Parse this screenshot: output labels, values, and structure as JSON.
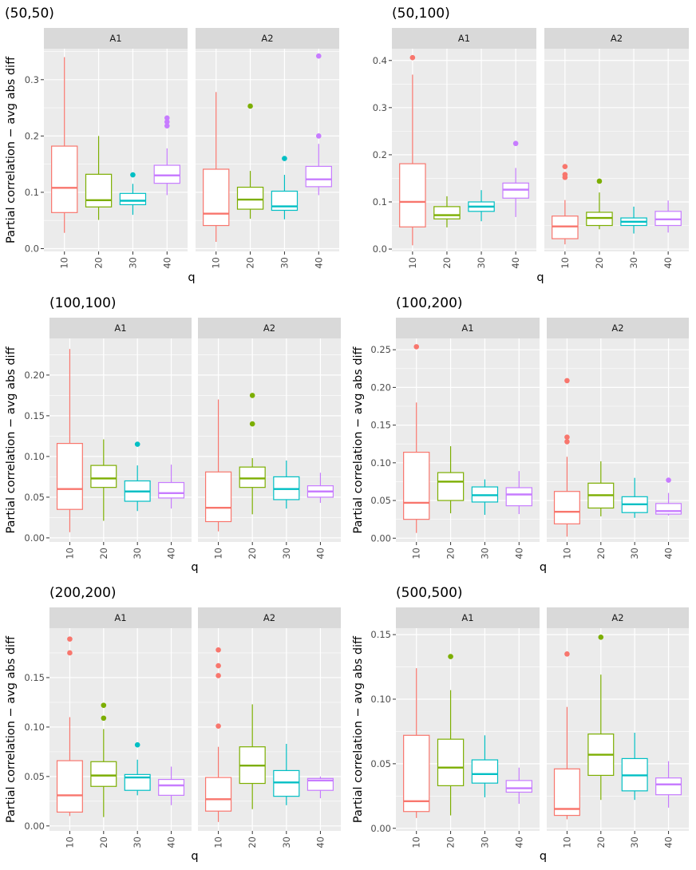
{
  "chart_data": [
    {
      "type": "boxplot",
      "title": "(50,50)",
      "xlabel": "q",
      "ylabel": "Partial correlation − avg abs diff",
      "categories": [
        "10",
        "20",
        "30",
        "40"
      ],
      "colors": [
        "#F8766D",
        "#7CAE00",
        "#00BFC4",
        "#C77CFF"
      ],
      "ylim": [
        -0.005,
        0.355
      ],
      "yticks": [
        0.0,
        0.1,
        0.2,
        0.3
      ],
      "ytick_labels": [
        "0.0",
        "0.1",
        "0.2",
        "0.3"
      ],
      "facets": [
        {
          "label": "A1",
          "boxes": [
            {
              "min": 0.028,
              "q1": 0.064,
              "median": 0.108,
              "q3": 0.182,
              "max": 0.34,
              "outliers": []
            },
            {
              "min": 0.051,
              "q1": 0.074,
              "median": 0.086,
              "q3": 0.132,
              "max": 0.2,
              "outliers": []
            },
            {
              "min": 0.06,
              "q1": 0.078,
              "median": 0.085,
              "q3": 0.098,
              "max": 0.115,
              "outliers": [
                0.131
              ]
            },
            {
              "min": 0.095,
              "q1": 0.116,
              "median": 0.13,
              "q3": 0.148,
              "max": 0.178,
              "outliers": [
                0.218,
                0.225,
                0.232
              ]
            }
          ]
        },
        {
          "label": "A2",
          "boxes": [
            {
              "min": 0.012,
              "q1": 0.041,
              "median": 0.062,
              "q3": 0.141,
              "max": 0.278,
              "outliers": []
            },
            {
              "min": 0.053,
              "q1": 0.07,
              "median": 0.087,
              "q3": 0.109,
              "max": 0.138,
              "outliers": [
                0.253
              ]
            },
            {
              "min": 0.052,
              "q1": 0.068,
              "median": 0.075,
              "q3": 0.102,
              "max": 0.131,
              "outliers": [
                0.16
              ]
            },
            {
              "min": 0.095,
              "q1": 0.11,
              "median": 0.123,
              "q3": 0.146,
              "max": 0.186,
              "outliers": [
                0.2,
                0.342
              ]
            }
          ]
        }
      ]
    },
    {
      "type": "boxplot",
      "title": "(50,100)",
      "xlabel": "q",
      "ylabel": "",
      "categories": [
        "10",
        "20",
        "30",
        "40"
      ],
      "colors": [
        "#F8766D",
        "#7CAE00",
        "#00BFC4",
        "#C77CFF"
      ],
      "ylim": [
        -0.005,
        0.425
      ],
      "yticks": [
        0.0,
        0.1,
        0.2,
        0.3,
        0.4
      ],
      "ytick_labels": [
        "0.0",
        "0.1",
        "0.2",
        "0.3",
        "0.4"
      ],
      "facets": [
        {
          "label": "A1",
          "boxes": [
            {
              "min": 0.008,
              "q1": 0.047,
              "median": 0.1,
              "q3": 0.181,
              "max": 0.37,
              "outliers": [
                0.406
              ]
            },
            {
              "min": 0.046,
              "q1": 0.064,
              "median": 0.072,
              "q3": 0.09,
              "max": 0.112,
              "outliers": []
            },
            {
              "min": 0.059,
              "q1": 0.08,
              "median": 0.09,
              "q3": 0.1,
              "max": 0.125,
              "outliers": []
            },
            {
              "min": 0.068,
              "q1": 0.108,
              "median": 0.126,
              "q3": 0.14,
              "max": 0.172,
              "outliers": [
                0.224
              ]
            }
          ]
        },
        {
          "label": "A2",
          "boxes": [
            {
              "min": 0.01,
              "q1": 0.022,
              "median": 0.048,
              "q3": 0.07,
              "max": 0.104,
              "outliers": [
                0.152,
                0.158,
                0.175
              ]
            },
            {
              "min": 0.042,
              "q1": 0.05,
              "median": 0.066,
              "q3": 0.078,
              "max": 0.12,
              "outliers": [
                0.144
              ]
            },
            {
              "min": 0.033,
              "q1": 0.05,
              "median": 0.058,
              "q3": 0.066,
              "max": 0.09,
              "outliers": []
            },
            {
              "min": 0.035,
              "q1": 0.05,
              "median": 0.063,
              "q3": 0.08,
              "max": 0.103,
              "outliers": []
            }
          ]
        }
      ]
    },
    {
      "type": "boxplot",
      "title": "(100,100)",
      "xlabel": "q",
      "ylabel": "Partial correlation − avg abs diff",
      "categories": [
        "10",
        "20",
        "30",
        "40"
      ],
      "colors": [
        "#F8766D",
        "#7CAE00",
        "#00BFC4",
        "#C77CFF"
      ],
      "ylim": [
        -0.005,
        0.245
      ],
      "yticks": [
        0.0,
        0.05,
        0.1,
        0.15,
        0.2
      ],
      "ytick_labels": [
        "0.00",
        "0.05",
        "0.10",
        "0.15",
        "0.20"
      ],
      "facets": [
        {
          "label": "A1",
          "boxes": [
            {
              "min": 0.007,
              "q1": 0.035,
              "median": 0.06,
              "q3": 0.116,
              "max": 0.232,
              "outliers": []
            },
            {
              "min": 0.021,
              "q1": 0.062,
              "median": 0.073,
              "q3": 0.089,
              "max": 0.121,
              "outliers": []
            },
            {
              "min": 0.033,
              "q1": 0.045,
              "median": 0.057,
              "q3": 0.07,
              "max": 0.089,
              "outliers": [
                0.115
              ]
            },
            {
              "min": 0.036,
              "q1": 0.049,
              "median": 0.055,
              "q3": 0.068,
              "max": 0.09,
              "outliers": []
            }
          ]
        },
        {
          "label": "A2",
          "boxes": [
            {
              "min": 0.008,
              "q1": 0.02,
              "median": 0.037,
              "q3": 0.081,
              "max": 0.17,
              "outliers": []
            },
            {
              "min": 0.029,
              "q1": 0.062,
              "median": 0.073,
              "q3": 0.087,
              "max": 0.098,
              "outliers": [
                0.14,
                0.175
              ]
            },
            {
              "min": 0.036,
              "q1": 0.047,
              "median": 0.06,
              "q3": 0.075,
              "max": 0.095,
              "outliers": []
            },
            {
              "min": 0.043,
              "q1": 0.05,
              "median": 0.057,
              "q3": 0.064,
              "max": 0.08,
              "outliers": []
            }
          ]
        }
      ]
    },
    {
      "type": "boxplot",
      "title": "(100,200)",
      "xlabel": "q",
      "ylabel": "Partial correlation − avg abs diff",
      "categories": [
        "10",
        "20",
        "30",
        "40"
      ],
      "colors": [
        "#F8766D",
        "#7CAE00",
        "#00BFC4",
        "#C77CFF"
      ],
      "ylim": [
        -0.005,
        0.265
      ],
      "yticks": [
        0.0,
        0.05,
        0.1,
        0.15,
        0.2,
        0.25
      ],
      "ytick_labels": [
        "0.00",
        "0.05",
        "0.10",
        "0.15",
        "0.20",
        "0.25"
      ],
      "facets": [
        {
          "label": "A1",
          "boxes": [
            {
              "min": 0.007,
              "q1": 0.025,
              "median": 0.047,
              "q3": 0.114,
              "max": 0.18,
              "outliers": [
                0.254
              ]
            },
            {
              "min": 0.033,
              "q1": 0.05,
              "median": 0.075,
              "q3": 0.087,
              "max": 0.122,
              "outliers": []
            },
            {
              "min": 0.031,
              "q1": 0.048,
              "median": 0.057,
              "q3": 0.068,
              "max": 0.078,
              "outliers": []
            },
            {
              "min": 0.032,
              "q1": 0.043,
              "median": 0.058,
              "q3": 0.067,
              "max": 0.089,
              "outliers": []
            }
          ]
        },
        {
          "label": "A2",
          "boxes": [
            {
              "min": 0.002,
              "q1": 0.019,
              "median": 0.035,
              "q3": 0.062,
              "max": 0.108,
              "outliers": [
                0.128,
                0.134,
                0.209
              ]
            },
            {
              "min": 0.029,
              "q1": 0.04,
              "median": 0.057,
              "q3": 0.073,
              "max": 0.102,
              "outliers": []
            },
            {
              "min": 0.027,
              "q1": 0.034,
              "median": 0.045,
              "q3": 0.055,
              "max": 0.08,
              "outliers": []
            },
            {
              "min": 0.03,
              "q1": 0.032,
              "median": 0.036,
              "q3": 0.046,
              "max": 0.06,
              "outliers": [
                0.077
              ]
            }
          ]
        }
      ]
    },
    {
      "type": "boxplot",
      "title": "(200,200)",
      "xlabel": "q",
      "ylabel": "Partial correlation − avg abs diff",
      "categories": [
        "10",
        "20",
        "30",
        "40"
      ],
      "colors": [
        "#F8766D",
        "#7CAE00",
        "#00BFC4",
        "#C77CFF"
      ],
      "ylim": [
        -0.005,
        0.2
      ],
      "yticks": [
        0.0,
        0.05,
        0.1,
        0.15
      ],
      "ytick_labels": [
        "0.00",
        "0.05",
        "0.10",
        "0.15"
      ],
      "facets": [
        {
          "label": "A1",
          "boxes": [
            {
              "min": 0.01,
              "q1": 0.014,
              "median": 0.031,
              "q3": 0.066,
              "max": 0.11,
              "outliers": [
                0.175,
                0.189
              ]
            },
            {
              "min": 0.009,
              "q1": 0.04,
              "median": 0.051,
              "q3": 0.065,
              "max": 0.098,
              "outliers": [
                0.109,
                0.122
              ]
            },
            {
              "min": 0.031,
              "q1": 0.036,
              "median": 0.049,
              "q3": 0.052,
              "max": 0.067,
              "outliers": [
                0.082
              ]
            },
            {
              "min": 0.021,
              "q1": 0.031,
              "median": 0.041,
              "q3": 0.047,
              "max": 0.06,
              "outliers": []
            }
          ]
        },
        {
          "label": "A2",
          "boxes": [
            {
              "min": 0.004,
              "q1": 0.015,
              "median": 0.027,
              "q3": 0.049,
              "max": 0.08,
              "outliers": [
                0.101,
                0.152,
                0.162,
                0.178
              ]
            },
            {
              "min": 0.017,
              "q1": 0.043,
              "median": 0.061,
              "q3": 0.08,
              "max": 0.123,
              "outliers": []
            },
            {
              "min": 0.021,
              "q1": 0.03,
              "median": 0.044,
              "q3": 0.056,
              "max": 0.083,
              "outliers": []
            },
            {
              "min": 0.028,
              "q1": 0.036,
              "median": 0.046,
              "q3": 0.048,
              "max": 0.05,
              "outliers": []
            }
          ]
        }
      ]
    },
    {
      "type": "boxplot",
      "title": "(500,500)",
      "xlabel": "q",
      "ylabel": "Partial correlation − avg abs diff",
      "categories": [
        "10",
        "20",
        "30",
        "40"
      ],
      "colors": [
        "#F8766D",
        "#7CAE00",
        "#00BFC4",
        "#C77CFF"
      ],
      "ylim": [
        -0.002,
        0.155
      ],
      "yticks": [
        0.0,
        0.05,
        0.1,
        0.15
      ],
      "ytick_labels": [
        "0.00",
        "0.05",
        "0.10",
        "0.15"
      ],
      "facets": [
        {
          "label": "A1",
          "boxes": [
            {
              "min": 0.008,
              "q1": 0.013,
              "median": 0.021,
              "q3": 0.072,
              "max": 0.124,
              "outliers": []
            },
            {
              "min": 0.01,
              "q1": 0.033,
              "median": 0.047,
              "q3": 0.069,
              "max": 0.107,
              "outliers": [
                0.133
              ]
            },
            {
              "min": 0.024,
              "q1": 0.035,
              "median": 0.042,
              "q3": 0.053,
              "max": 0.072,
              "outliers": []
            },
            {
              "min": 0.019,
              "q1": 0.028,
              "median": 0.031,
              "q3": 0.037,
              "max": 0.047,
              "outliers": []
            }
          ]
        },
        {
          "label": "A2",
          "boxes": [
            {
              "min": 0.007,
              "q1": 0.01,
              "median": 0.015,
              "q3": 0.046,
              "max": 0.094,
              "outliers": [
                0.135
              ]
            },
            {
              "min": 0.022,
              "q1": 0.041,
              "median": 0.057,
              "q3": 0.073,
              "max": 0.119,
              "outliers": [
                0.148
              ]
            },
            {
              "min": 0.022,
              "q1": 0.029,
              "median": 0.041,
              "q3": 0.054,
              "max": 0.074,
              "outliers": []
            },
            {
              "min": 0.016,
              "q1": 0.026,
              "median": 0.034,
              "q3": 0.039,
              "max": 0.052,
              "outliers": []
            }
          ]
        }
      ]
    }
  ]
}
